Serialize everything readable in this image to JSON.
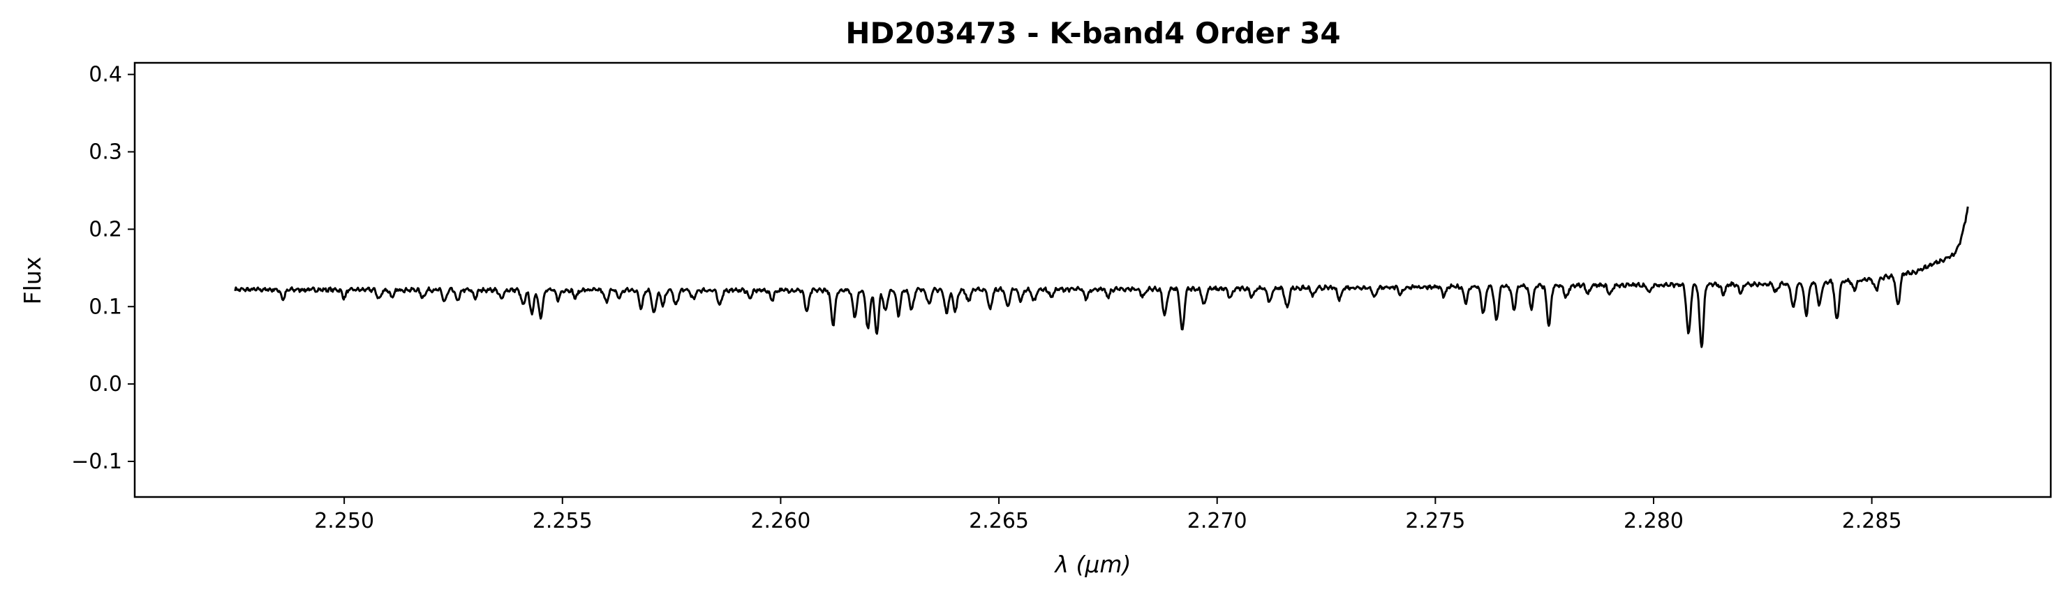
{
  "chart_data": {
    "type": "line",
    "title": "HD203473 - K-band4 Order 34",
    "xlabel": "λ (μm)",
    "ylabel": "Flux",
    "xlim": [
      2.2452,
      2.2891
    ],
    "ylim": [
      -0.146,
      0.415
    ],
    "xticks": [
      2.25,
      2.255,
      2.26,
      2.265,
      2.27,
      2.275,
      2.28,
      2.285
    ],
    "xtick_labels": [
      "2.250",
      "2.255",
      "2.260",
      "2.265",
      "2.270",
      "2.275",
      "2.280",
      "2.285"
    ],
    "yticks": [
      -0.1,
      0.0,
      0.1,
      0.2,
      0.3,
      0.4
    ],
    "ytick_labels": [
      "−0.1",
      "0.0",
      "0.1",
      "0.2",
      "0.3",
      "0.4"
    ],
    "grid": false,
    "legend": "none",
    "line_color": "#000000",
    "series": [
      {
        "x_start": 2.2475,
        "x_end": 2.2872,
        "continuum": [
          [
            2.2475,
            0.122
          ],
          [
            2.26,
            0.121
          ],
          [
            2.27,
            0.123
          ],
          [
            2.28,
            0.128
          ],
          [
            2.283,
            0.129
          ],
          [
            2.285,
            0.135
          ],
          [
            2.286,
            0.145
          ],
          [
            2.2868,
            0.165
          ],
          [
            2.2872,
            0.228
          ]
        ],
        "absorption_lines": [
          [
            2.2486,
            0.012
          ],
          [
            2.25,
            0.01
          ],
          [
            2.2508,
            0.012
          ],
          [
            2.2511,
            0.01
          ],
          [
            2.2518,
            0.01
          ],
          [
            2.2523,
            0.015
          ],
          [
            2.2526,
            0.014
          ],
          [
            2.253,
            0.01
          ],
          [
            2.2536,
            0.012
          ],
          [
            2.2541,
            0.02
          ],
          [
            2.2543,
            0.03
          ],
          [
            2.2545,
            0.035
          ],
          [
            2.2549,
            0.012
          ],
          [
            2.2553,
            0.01
          ],
          [
            2.256,
            0.015
          ],
          [
            2.2563,
            0.01
          ],
          [
            2.2568,
            0.022
          ],
          [
            2.2571,
            0.03
          ],
          [
            2.2573,
            0.02
          ],
          [
            2.2576,
            0.02
          ],
          [
            2.258,
            0.012
          ],
          [
            2.2586,
            0.02
          ],
          [
            2.2593,
            0.01
          ],
          [
            2.2598,
            0.012
          ],
          [
            2.2606,
            0.028
          ],
          [
            2.2612,
            0.045
          ],
          [
            2.2617,
            0.035
          ],
          [
            2.262,
            0.05
          ],
          [
            2.2622,
            0.055
          ],
          [
            2.2624,
            0.028
          ],
          [
            2.2627,
            0.032
          ],
          [
            2.263,
            0.025
          ],
          [
            2.2634,
            0.018
          ],
          [
            2.2638,
            0.03
          ],
          [
            2.264,
            0.028
          ],
          [
            2.2643,
            0.015
          ],
          [
            2.2648,
            0.025
          ],
          [
            2.2652,
            0.022
          ],
          [
            2.2655,
            0.015
          ],
          [
            2.2658,
            0.015
          ],
          [
            2.2662,
            0.01
          ],
          [
            2.267,
            0.012
          ],
          [
            2.2675,
            0.01
          ],
          [
            2.2683,
            0.01
          ],
          [
            2.2688,
            0.035
          ],
          [
            2.2692,
            0.055
          ],
          [
            2.2697,
            0.02
          ],
          [
            2.2703,
            0.012
          ],
          [
            2.2708,
            0.01
          ],
          [
            2.2712,
            0.018
          ],
          [
            2.2716,
            0.025
          ],
          [
            2.2722,
            0.01
          ],
          [
            2.2728,
            0.015
          ],
          [
            2.2736,
            0.012
          ],
          [
            2.2742,
            0.01
          ],
          [
            2.2752,
            0.012
          ],
          [
            2.2757,
            0.02
          ],
          [
            2.2761,
            0.035
          ],
          [
            2.2764,
            0.045
          ],
          [
            2.2768,
            0.03
          ],
          [
            2.2772,
            0.028
          ],
          [
            2.2776,
            0.052
          ],
          [
            2.278,
            0.015
          ],
          [
            2.2785,
            0.01
          ],
          [
            2.279,
            0.012
          ],
          [
            2.2799,
            0.01
          ],
          [
            2.2808,
            0.065
          ],
          [
            2.2811,
            0.08
          ],
          [
            2.2816,
            0.012
          ],
          [
            2.282,
            0.01
          ],
          [
            2.2828,
            0.01
          ],
          [
            2.2832,
            0.03
          ],
          [
            2.2835,
            0.04
          ],
          [
            2.2838,
            0.03
          ],
          [
            2.2842,
            0.05
          ],
          [
            2.2846,
            0.012
          ],
          [
            2.2851,
            0.015
          ],
          [
            2.2856,
            0.04
          ]
        ]
      }
    ]
  }
}
